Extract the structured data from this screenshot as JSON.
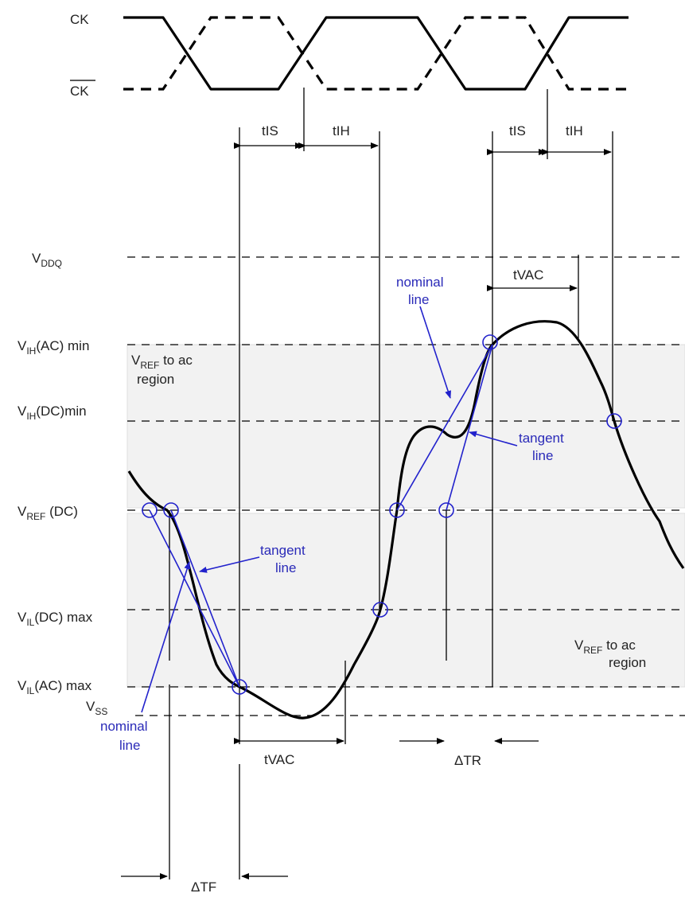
{
  "clock": {
    "ck": "CK",
    "ck_bar": "CK"
  },
  "timing": {
    "tis": "tIS",
    "tih": "tIH",
    "tvac": "tVAC",
    "delta_tr": "ΔTR",
    "delta_tf": "ΔTF"
  },
  "levels": {
    "vddq": {
      "main": "V",
      "sub": "DDQ",
      "suffix": ""
    },
    "vih_ac": {
      "main": "V",
      "sub": "IH",
      "suffix": "(AC) min"
    },
    "vih_dc": {
      "main": "V",
      "sub": "IH",
      "suffix": "(DC)min"
    },
    "vref_dc": {
      "main": "V",
      "sub": "REF",
      "suffix": " (DC)"
    },
    "vil_dc": {
      "main": "V",
      "sub": "IL",
      "suffix": "(DC) max"
    },
    "vil_ac": {
      "main": "V",
      "sub": "IL",
      "suffix": "(AC) max"
    },
    "vss": {
      "main": "V",
      "sub": "SS",
      "suffix": ""
    }
  },
  "regions": {
    "upper": {
      "main": "V",
      "sub": "REF",
      "suffix": " to ac",
      "line2": "region"
    },
    "lower": {
      "main": "V",
      "sub": "REF",
      "suffix": " to ac",
      "line2": "region"
    }
  },
  "annotations": {
    "nominal_1": "nominal",
    "nominal_2": "line",
    "tangent_1": "tangent",
    "tangent_2": "line"
  },
  "colors": {
    "annotation_blue": "#2222cc",
    "region_fill": "#f2f2f2"
  }
}
